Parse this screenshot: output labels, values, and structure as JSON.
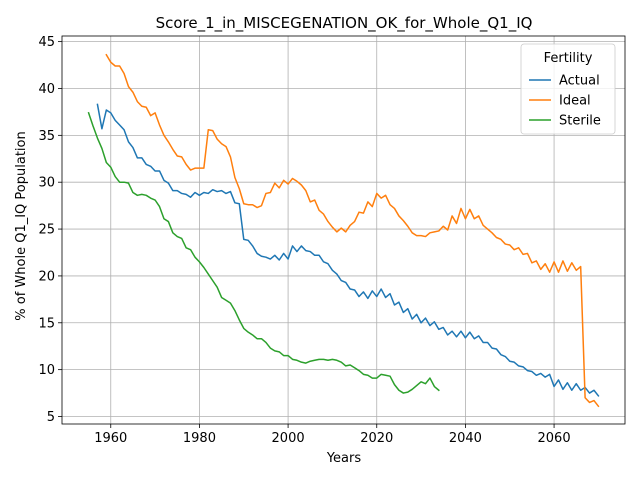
{
  "chart_data": {
    "type": "line",
    "title": "Score_1_in_MISCEGENATION_OK_for_Whole_Q1_IQ",
    "xlabel": "Years",
    "ylabel": "% of Whole Q1_IQ Population",
    "xlim": [
      1949,
      2076
    ],
    "ylim": [
      4.2,
      45.6
    ],
    "xticks": [
      1960,
      1980,
      2000,
      2020,
      2040,
      2060
    ],
    "yticks": [
      5,
      10,
      15,
      20,
      25,
      30,
      35,
      40,
      45
    ],
    "grid": true,
    "legend": {
      "title": "Fertility",
      "placement": "top-right"
    },
    "series": [
      {
        "name": "Actual",
        "color": "#1f77b4",
        "x": [
          1957,
          1958,
          1959,
          1960,
          1961,
          1962,
          1963,
          1964,
          1965,
          1966,
          1967,
          1968,
          1969,
          1970,
          1971,
          1972,
          1973,
          1974,
          1975,
          1976,
          1977,
          1978,
          1979,
          1980,
          1981,
          1982,
          1983,
          1984,
          1985,
          1986,
          1987,
          1988,
          1989,
          1990,
          1991,
          1992,
          1993,
          1994,
          1995,
          1996,
          1997,
          1998,
          1999,
          2000,
          2001,
          2002,
          2003,
          2004,
          2005,
          2006,
          2007,
          2008,
          2009,
          2010,
          2011,
          2012,
          2013,
          2014,
          2015,
          2016,
          2017,
          2018,
          2019,
          2020,
          2021,
          2022,
          2023,
          2024,
          2025,
          2026,
          2027,
          2028,
          2029,
          2030,
          2031,
          2032,
          2033,
          2034,
          2035,
          2036,
          2037,
          2038,
          2039,
          2040,
          2041,
          2042,
          2043,
          2044,
          2045,
          2046,
          2047,
          2048,
          2049,
          2050,
          2051,
          2052,
          2053,
          2054,
          2055,
          2056,
          2057,
          2058,
          2059,
          2060,
          2061,
          2062,
          2063,
          2064,
          2065,
          2066,
          2067,
          2068,
          2069,
          2070
        ],
        "values": [
          38.3,
          35.7,
          37.7,
          37.4,
          36.6,
          36.1,
          35.6,
          34.3,
          33.7,
          32.6,
          32.6,
          31.9,
          31.7,
          31.2,
          31.2,
          30.2,
          29.9,
          29.1,
          29.1,
          28.8,
          28.7,
          28.4,
          28.9,
          28.6,
          28.9,
          28.8,
          29.2,
          29.0,
          29.1,
          28.8,
          29.0,
          27.8,
          27.7,
          23.9,
          23.8,
          23.2,
          22.4,
          22.1,
          22.0,
          21.8,
          22.2,
          21.7,
          22.4,
          21.8,
          23.2,
          22.6,
          23.2,
          22.7,
          22.6,
          22.2,
          22.2,
          21.5,
          21.3,
          20.6,
          20.2,
          19.5,
          19.3,
          18.6,
          18.5,
          17.8,
          18.3,
          17.6,
          18.4,
          17.8,
          18.6,
          17.7,
          18.1,
          16.9,
          17.2,
          16.1,
          16.5,
          15.4,
          15.9,
          15.0,
          15.5,
          14.7,
          15.1,
          14.3,
          14.5,
          13.7,
          14.1,
          13.5,
          14.1,
          13.4,
          14.0,
          13.3,
          13.6,
          12.9,
          12.9,
          12.3,
          12.2,
          11.6,
          11.4,
          10.9,
          10.8,
          10.4,
          10.3,
          9.9,
          9.8,
          9.4,
          9.6,
          9.2,
          9.5,
          8.2,
          8.9,
          7.9,
          8.6,
          7.8,
          8.5,
          7.8,
          8.1,
          7.5,
          7.8,
          7.2
        ]
      },
      {
        "name": "Ideal",
        "color": "#ff7f0e",
        "x": [
          1959,
          1960,
          1961,
          1962,
          1963,
          1964,
          1965,
          1966,
          1967,
          1968,
          1969,
          1970,
          1971,
          1972,
          1973,
          1974,
          1975,
          1976,
          1977,
          1978,
          1979,
          1980,
          1981,
          1982,
          1983,
          1984,
          1985,
          1986,
          1987,
          1988,
          1989,
          1990,
          1991,
          1992,
          1993,
          1994,
          1995,
          1996,
          1997,
          1998,
          1999,
          2000,
          2001,
          2002,
          2003,
          2004,
          2005,
          2006,
          2007,
          2008,
          2009,
          2010,
          2011,
          2012,
          2013,
          2014,
          2015,
          2016,
          2017,
          2018,
          2019,
          2020,
          2021,
          2022,
          2023,
          2024,
          2025,
          2026,
          2027,
          2028,
          2029,
          2030,
          2031,
          2032,
          2033,
          2034,
          2035,
          2036,
          2037,
          2038,
          2039,
          2040,
          2041,
          2042,
          2043,
          2044,
          2045,
          2046,
          2047,
          2048,
          2049,
          2050,
          2051,
          2052,
          2053,
          2054,
          2055,
          2056,
          2057,
          2058,
          2059,
          2060,
          2061,
          2062,
          2063,
          2064,
          2065,
          2066,
          2067,
          2068,
          2069,
          2070
        ],
        "values": [
          43.6,
          42.8,
          42.4,
          42.4,
          41.6,
          40.2,
          39.6,
          38.6,
          38.1,
          38.0,
          37.1,
          37.4,
          36.1,
          35.0,
          34.3,
          33.5,
          32.8,
          32.7,
          31.9,
          31.3,
          31.5,
          31.5,
          31.5,
          35.6,
          35.5,
          34.6,
          34.1,
          33.8,
          32.7,
          30.5,
          29.3,
          27.7,
          27.6,
          27.6,
          27.3,
          27.5,
          28.8,
          28.9,
          29.9,
          29.4,
          30.2,
          29.8,
          30.4,
          30.1,
          29.7,
          29.1,
          27.9,
          28.1,
          27.0,
          26.6,
          25.8,
          25.2,
          24.7,
          25.1,
          24.7,
          25.4,
          25.8,
          26.8,
          26.7,
          27.9,
          27.4,
          28.8,
          28.3,
          28.6,
          27.6,
          27.2,
          26.4,
          25.9,
          25.3,
          24.6,
          24.3,
          24.3,
          24.2,
          24.6,
          24.7,
          24.8,
          25.3,
          24.9,
          26.4,
          25.6,
          27.2,
          26.1,
          27.1,
          26.1,
          26.4,
          25.4,
          25.0,
          24.6,
          24.1,
          23.9,
          23.4,
          23.3,
          22.8,
          23.0,
          22.3,
          22.4,
          21.4,
          21.6,
          20.7,
          21.3,
          20.4,
          21.5,
          20.4,
          21.6,
          20.5,
          21.4,
          20.6,
          21.0,
          7.0,
          6.5,
          6.7,
          6.1
        ]
      },
      {
        "name": "Sterile",
        "color": "#2ca02c",
        "x": [
          1955,
          1956,
          1957,
          1958,
          1959,
          1960,
          1961,
          1962,
          1963,
          1964,
          1965,
          1966,
          1967,
          1968,
          1969,
          1970,
          1971,
          1972,
          1973,
          1974,
          1975,
          1976,
          1977,
          1978,
          1979,
          1980,
          1981,
          1982,
          1983,
          1984,
          1985,
          1986,
          1987,
          1988,
          1989,
          1990,
          1991,
          1992,
          1993,
          1994,
          1995,
          1996,
          1997,
          1998,
          1999,
          2000,
          2001,
          2002,
          2003,
          2004,
          2005,
          2006,
          2007,
          2008,
          2009,
          2010,
          2011,
          2012,
          2013,
          2014,
          2015,
          2016,
          2017,
          2018,
          2019,
          2020,
          2021,
          2022,
          2023,
          2024,
          2025,
          2026,
          2027,
          2028,
          2029,
          2030,
          2031,
          2032,
          2033,
          2034
        ],
        "values": [
          37.4,
          36.0,
          34.7,
          33.6,
          32.1,
          31.6,
          30.6,
          30.0,
          30.0,
          29.9,
          28.9,
          28.6,
          28.7,
          28.6,
          28.3,
          28.1,
          27.4,
          26.1,
          25.8,
          24.6,
          24.2,
          24.0,
          23.0,
          22.8,
          22.0,
          21.5,
          20.9,
          20.2,
          19.5,
          18.8,
          17.7,
          17.4,
          17.1,
          16.3,
          15.3,
          14.4,
          14.0,
          13.7,
          13.3,
          13.3,
          12.9,
          12.3,
          12.0,
          11.9,
          11.5,
          11.5,
          11.1,
          11.0,
          10.8,
          10.7,
          10.9,
          11.0,
          11.1,
          11.1,
          11.0,
          11.1,
          11.0,
          10.8,
          10.4,
          10.5,
          10.2,
          9.9,
          9.5,
          9.4,
          9.1,
          9.1,
          9.5,
          9.4,
          9.3,
          8.4,
          7.8,
          7.5,
          7.6,
          7.9,
          8.3,
          8.7,
          8.5,
          9.1,
          8.2,
          7.8
        ]
      }
    ]
  }
}
